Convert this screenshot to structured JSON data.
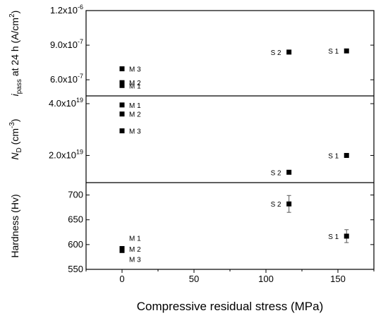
{
  "chart_data": {
    "type": "scatter",
    "xlabel": "Compressive residual stress (MPa)",
    "xlim": [
      -25,
      175
    ],
    "x_ticks": [
      0,
      50,
      100,
      150
    ],
    "x_tick_labels": [
      "0",
      "50",
      "100",
      "150"
    ],
    "grid": false,
    "panels": [
      {
        "id": "ipass",
        "ylabel_parts": [
          {
            "text": "i",
            "italic": true
          },
          {
            "text": "pass",
            "sub": true
          },
          {
            "text": " at 24 h (A/cm"
          },
          {
            "text": "2",
            "sup": true
          },
          {
            "text": ")"
          }
        ],
        "ylim": [
          4.6e-07,
          1.2e-06
        ],
        "y_ticks": [
          6e-07,
          9e-07,
          1.2e-06
        ],
        "y_tick_labels": [
          {
            "mantissa": "6.0x10",
            "exp": "-7"
          },
          {
            "mantissa": "9.0x10",
            "exp": "-7"
          },
          {
            "mantissa": "1.2x10",
            "exp": "-6"
          }
        ],
        "points": [
          {
            "label": "M 3",
            "x": 0,
            "y": 6.95e-07,
            "label_side": "right"
          },
          {
            "label": "M 2",
            "x": 0,
            "y": 5.75e-07,
            "label_side": "right"
          },
          {
            "label": "M 1",
            "x": 0,
            "y": 5.5e-07,
            "label_side": "right"
          },
          {
            "label": "S 2",
            "x": 116,
            "y": 8.4e-07,
            "label_side": "left"
          },
          {
            "label": "S 1",
            "x": 156,
            "y": 8.5e-07,
            "label_side": "left"
          }
        ]
      },
      {
        "id": "nd",
        "ylabel_parts": [
          {
            "text": "N",
            "italic": true
          },
          {
            "text": "D",
            "sub": true
          },
          {
            "text": " (cm"
          },
          {
            "text": "-3",
            "sup": true
          },
          {
            "text": ")"
          }
        ],
        "ylim": [
          9.5e+18,
          4.3e+19
        ],
        "y_ticks": [
          2e+19,
          4e+19
        ],
        "y_tick_labels": [
          {
            "mantissa": "2.0x10",
            "exp": "19"
          },
          {
            "mantissa": "4.0x10",
            "exp": "19"
          }
        ],
        "points": [
          {
            "label": "M 1",
            "x": 0,
            "y": 3.95e+19,
            "label_side": "right"
          },
          {
            "label": "M 2",
            "x": 0,
            "y": 3.6e+19,
            "label_side": "right"
          },
          {
            "label": "M 3",
            "x": 0,
            "y": 2.95e+19,
            "label_side": "right"
          },
          {
            "label": "S 2",
            "x": 116,
            "y": 1.35e+19,
            "label_side": "left"
          },
          {
            "label": "S 1",
            "x": 156,
            "y": 2e+19,
            "label_side": "left"
          }
        ]
      },
      {
        "id": "hardness",
        "ylabel_parts": [
          {
            "text": "Hardness (Hv)"
          }
        ],
        "ylim": [
          550,
          725
        ],
        "y_ticks": [
          550,
          600,
          650,
          700
        ],
        "y_tick_labels": [
          {
            "mantissa": "550"
          },
          {
            "mantissa": "600"
          },
          {
            "mantissa": "650"
          },
          {
            "mantissa": "700"
          }
        ],
        "points": [
          {
            "label": "M 1",
            "x": 0,
            "y": 592,
            "label_side": "right",
            "label_dy": -11
          },
          {
            "label": "M 2",
            "x": 0,
            "y": 590,
            "label_side": "right",
            "label_dy": 3
          },
          {
            "label": "M 3",
            "x": 0,
            "y": 588,
            "label_side": "right",
            "label_dy": 16
          },
          {
            "label": "S 2",
            "x": 116,
            "y": 682,
            "err": 17,
            "label_side": "left"
          },
          {
            "label": "S 1",
            "x": 156,
            "y": 617,
            "err": 13,
            "label_side": "left"
          }
        ]
      }
    ]
  }
}
